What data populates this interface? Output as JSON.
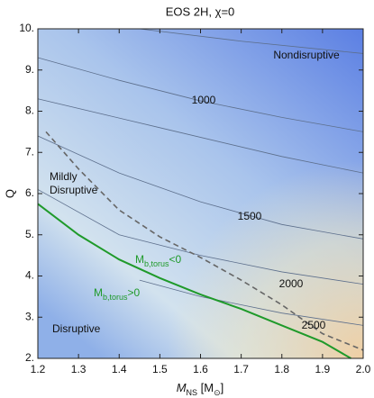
{
  "chart_data": {
    "type": "contour",
    "title": "EOS 2H, χ=0",
    "x_label": [
      "M",
      "NS",
      " [M",
      "⊙",
      "]"
    ],
    "y_label": "Q",
    "xlim": [
      1.2,
      2.0
    ],
    "ylim": [
      2,
      10
    ],
    "xticks": [
      1.2,
      1.3,
      1.4,
      1.5,
      1.6,
      1.7,
      1.8,
      1.9,
      {
        "value": 2,
        "label": "2.0"
      }
    ],
    "yticks": [
      {
        "value": 2,
        "label": "2."
      },
      {
        "value": 3,
        "label": "3."
      },
      {
        "value": 4,
        "label": "4."
      },
      {
        "value": 5,
        "label": "5."
      },
      {
        "value": 6,
        "label": "6."
      },
      {
        "value": 7,
        "label": "7."
      },
      {
        "value": 8,
        "label": "8."
      },
      {
        "value": 9,
        "label": "9."
      },
      {
        "value": 10,
        "label": "10."
      }
    ],
    "lines": [
      {
        "color": "#5d6f8c",
        "x": [
          1.45,
          1.7,
          2.0
        ],
        "y": [
          10,
          9.7,
          9.4
        ]
      },
      {
        "color": "#5d6f8c",
        "x": [
          1.2,
          1.4,
          1.6,
          1.8,
          2.0
        ],
        "y": [
          9.3,
          8.75,
          8.25,
          7.85,
          7.5
        ]
      },
      {
        "color": "#5d6f8c",
        "x": [
          1.2,
          1.5,
          1.8,
          2.0
        ],
        "y": [
          8.3,
          7.6,
          6.9,
          6.5
        ]
      },
      {
        "color": "#5d6f8c",
        "x": [
          1.2,
          1.4,
          1.6,
          1.8,
          2.0
        ],
        "y": [
          7.4,
          6.5,
          5.8,
          5.25,
          4.9
        ]
      },
      {
        "color": "#5d6f8c",
        "x": [
          1.2,
          1.4,
          1.6,
          1.8,
          2.0
        ],
        "y": [
          6.1,
          5.0,
          4.5,
          4.1,
          3.8
        ]
      },
      {
        "color": "#5d6f8c",
        "x": [
          1.45,
          1.6,
          1.8,
          2.0
        ],
        "y": [
          3.9,
          3.5,
          3.1,
          2.8
        ]
      },
      {
        "color": "#666666",
        "dashed": true,
        "x": [
          1.22,
          1.3,
          1.4,
          1.5,
          1.6,
          1.7,
          1.8,
          1.9,
          2.0
        ],
        "y": [
          7.5,
          6.6,
          5.6,
          4.95,
          4.45,
          3.9,
          3.3,
          2.6,
          2.2
        ]
      },
      {
        "color": "#1f9a2a",
        "width": 2,
        "x": [
          1.2,
          1.3,
          1.4,
          1.5,
          1.6,
          1.7,
          1.8,
          1.9,
          1.97
        ],
        "y": [
          5.75,
          5.0,
          4.4,
          3.95,
          3.55,
          3.2,
          2.8,
          2.4,
          2.0
        ]
      }
    ],
    "annotations": [
      {
        "text": "Nondisruptive"
      },
      {
        "text": "1000"
      },
      {
        "lines": [
          "Mildly",
          "Disruptive"
        ]
      },
      {
        "text": "1500"
      },
      {
        "text": "2000"
      },
      {
        "text": "2500"
      },
      {
        "text": "Disruptive"
      },
      {
        "parts": [
          "M",
          "b,torus",
          "<0"
        ],
        "color": "#1f9a2a"
      },
      {
        "parts": [
          "M",
          "b,torus",
          ">0"
        ],
        "color": "#1f9a2a"
      }
    ]
  }
}
